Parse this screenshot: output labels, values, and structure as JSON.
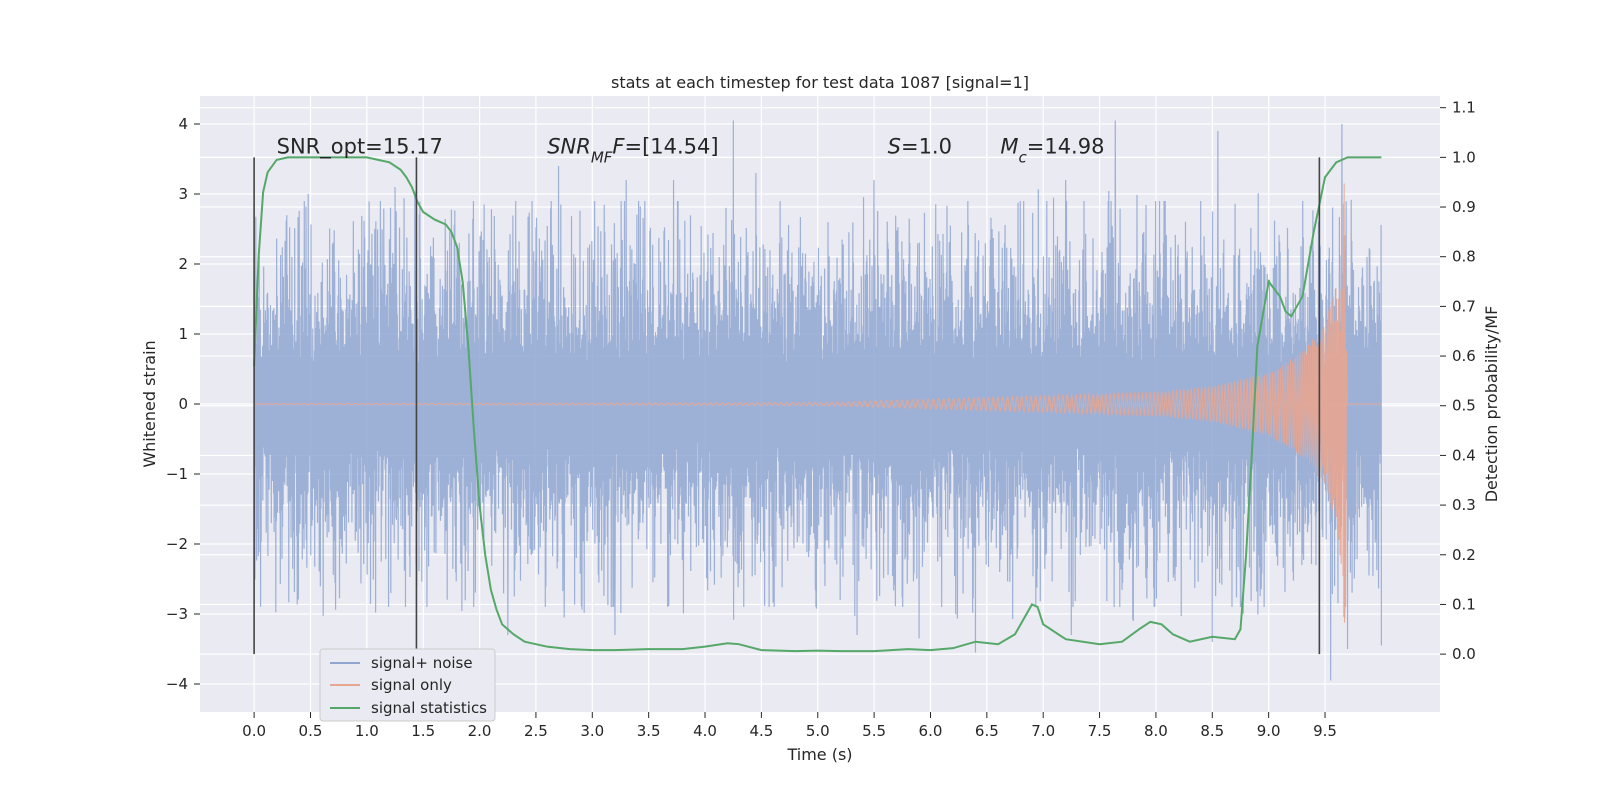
{
  "chart_data": {
    "type": "line",
    "title": "stats at each timestep for test data 1087 [signal=1]",
    "xlabel": "Time (s)",
    "ylabel": "Whitened strain",
    "y2label": "Detection probability/MF",
    "xlim": [
      -0.48,
      10.52
    ],
    "ylim": [
      -4.4,
      4.4
    ],
    "y2lim": [
      -0.1165,
      1.1235
    ],
    "xticks": [
      "0.0",
      "0.5",
      "1.0",
      "1.5",
      "2.0",
      "2.5",
      "3.0",
      "3.5",
      "4.0",
      "4.5",
      "5.0",
      "5.5",
      "6.0",
      "6.5",
      "7.0",
      "7.5",
      "8.0",
      "8.5",
      "9.0",
      "9.5"
    ],
    "yticks": [
      "4",
      "3",
      "2",
      "1",
      "0",
      "−1",
      "−2",
      "−3",
      "−4"
    ],
    "y2ticks": [
      "1.1",
      "1.0",
      "0.9",
      "0.8",
      "0.7",
      "0.6",
      "0.5",
      "0.4",
      "0.3",
      "0.2",
      "0.1",
      "0.0"
    ],
    "grid": true,
    "legend_placement": "lower-left",
    "annotations": [
      {
        "text": "SNR_opt=15.17",
        "x": 0.2
      },
      {
        "text": "SNR",
        "sub": "MF",
        "rest": "=[14.54]",
        "x": 2.6
      },
      {
        "text": "S",
        "rest": "=1.0",
        "x": 5.62
      },
      {
        "text": "M",
        "sub": "c",
        "rest": "=14.98",
        "x": 6.62
      }
    ],
    "vlines": [
      0.0,
      1.44,
      9.45
    ],
    "series": [
      {
        "name": "signal+ noise",
        "color": "#8fa6d1",
        "axis": "left",
        "description": "dense whitened noise from 0.0 to 10.0 s, typical amplitude within about ±2, spikes up to about ±4",
        "range": [
          0.0,
          10.0
        ],
        "envelope": 1.9,
        "peaks": [
          [
            0.48,
            3.0
          ],
          [
            1.25,
            3.1
          ],
          [
            2.7,
            3.4
          ],
          [
            3.3,
            3.2
          ],
          [
            3.72,
            3.2
          ],
          [
            4.25,
            4.05
          ],
          [
            4.45,
            3.3
          ],
          [
            5.5,
            3.2
          ],
          [
            6.4,
            3.1
          ],
          [
            7.2,
            3.2
          ],
          [
            7.64,
            4.05
          ],
          [
            8.55,
            3.9
          ],
          [
            9.65,
            4.0
          ],
          [
            2.25,
            -3.3
          ],
          [
            2.75,
            -3.05
          ],
          [
            3.2,
            -3.3
          ],
          [
            5.35,
            -3.3
          ],
          [
            5.9,
            -3.35
          ],
          [
            6.4,
            -3.55
          ],
          [
            7.25,
            -3.3
          ],
          [
            7.8,
            -3.1
          ],
          [
            8.5,
            -3.4
          ],
          [
            9.55,
            -3.95
          ],
          [
            9.7,
            -3.5
          ],
          [
            10.0,
            -3.45
          ]
        ]
      },
      {
        "name": "signal only",
        "color": "#e8a691",
        "axis": "left",
        "description": "chirp signal; amplitude grows from near 0 to about 3.5 just before merger at about 9.68 s",
        "envelope": [
          [
            0.0,
            0.005
          ],
          [
            5.0,
            0.02
          ],
          [
            6.0,
            0.07
          ],
          [
            7.0,
            0.12
          ],
          [
            8.0,
            0.17
          ],
          [
            8.5,
            0.25
          ],
          [
            9.0,
            0.45
          ],
          [
            9.3,
            0.75
          ],
          [
            9.5,
            1.15
          ],
          [
            9.6,
            1.7
          ],
          [
            9.65,
            2.5
          ],
          [
            9.68,
            3.5
          ],
          [
            9.7,
            0.0
          ]
        ]
      },
      {
        "name": "signal statistics",
        "color": "#55a868",
        "axis": "right",
        "x": [
          0.0,
          0.04,
          0.08,
          0.12,
          0.2,
          0.3,
          0.4,
          0.6,
          0.8,
          1.0,
          1.2,
          1.3,
          1.35,
          1.4,
          1.45,
          1.5,
          1.6,
          1.7,
          1.75,
          1.8,
          1.85,
          1.9,
          1.95,
          2.0,
          2.05,
          2.1,
          2.15,
          2.2,
          2.3,
          2.4,
          2.6,
          2.8,
          3.0,
          3.2,
          3.5,
          3.8,
          4.0,
          4.2,
          4.3,
          4.5,
          4.8,
          5.0,
          5.2,
          5.5,
          5.8,
          6.0,
          6.2,
          6.4,
          6.6,
          6.75,
          6.9,
          6.95,
          7.0,
          7.2,
          7.5,
          7.7,
          7.85,
          7.95,
          8.05,
          8.15,
          8.3,
          8.5,
          8.7,
          8.75,
          8.8,
          8.85,
          8.9,
          9.0,
          9.1,
          9.15,
          9.2,
          9.3,
          9.4,
          9.5,
          9.6,
          9.7,
          9.8,
          10.0
        ],
        "values": [
          0.58,
          0.8,
          0.93,
          0.97,
          0.995,
          1.0,
          1.0,
          1.0,
          1.0,
          1.0,
          0.99,
          0.975,
          0.96,
          0.94,
          0.91,
          0.89,
          0.875,
          0.865,
          0.85,
          0.82,
          0.75,
          0.62,
          0.45,
          0.3,
          0.2,
          0.13,
          0.09,
          0.06,
          0.04,
          0.025,
          0.015,
          0.01,
          0.008,
          0.008,
          0.01,
          0.01,
          0.015,
          0.022,
          0.02,
          0.008,
          0.006,
          0.007,
          0.006,
          0.006,
          0.01,
          0.008,
          0.012,
          0.025,
          0.02,
          0.04,
          0.1,
          0.095,
          0.06,
          0.03,
          0.02,
          0.025,
          0.05,
          0.065,
          0.06,
          0.04,
          0.025,
          0.035,
          0.03,
          0.05,
          0.2,
          0.4,
          0.62,
          0.75,
          0.72,
          0.69,
          0.68,
          0.72,
          0.85,
          0.96,
          0.99,
          1.0,
          1.0,
          1.0
        ]
      }
    ]
  }
}
